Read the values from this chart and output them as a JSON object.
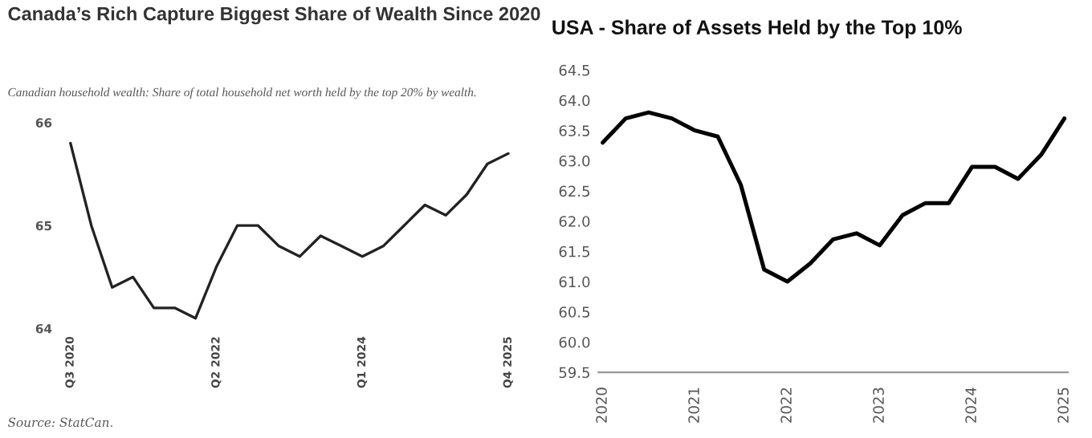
{
  "chart_data": [
    {
      "type": "line",
      "title": "Canada’s Rich Capture Biggest Share of Wealth Since 2020",
      "subtitle": "Canadian household wealth: Share of total household net worth held by the top 20% by wealth.",
      "categories": [
        "Q3 2020",
        null,
        null,
        null,
        null,
        null,
        null,
        "Q2 2022",
        null,
        null,
        null,
        null,
        null,
        null,
        "Q1 2024",
        null,
        null,
        null,
        null,
        null,
        null,
        "Q4 2025"
      ],
      "series": [
        {
          "color": "#222222",
          "values": [
            65.8,
            65.0,
            64.4,
            64.5,
            64.2,
            64.2,
            64.1,
            64.6,
            65.0,
            65.0,
            64.8,
            64.7,
            64.9,
            64.8,
            64.7,
            64.8,
            65.0,
            65.2,
            65.1,
            65.3,
            65.6,
            65.7
          ]
        }
      ],
      "ylim": [
        64,
        66
      ],
      "yticks": [
        64,
        65,
        66
      ],
      "grid": false,
      "legend": false,
      "marker": "none",
      "line_style": "solid",
      "annotations": [
        "Source: StatCan."
      ]
    },
    {
      "type": "line",
      "title": "USA - Share of Assets Held by the Top 10%",
      "x": [
        "2020-01-01",
        "2020-04-01",
        "2020-07-01",
        "2020-10-01",
        "2021-01-01",
        "2021-04-01",
        "2021-07-01",
        "2021-10-01",
        "2022-01-01",
        "2022-04-01",
        "2022-07-01",
        "2022-10-01",
        "2023-01-01",
        "2023-04-01",
        "2023-07-01",
        "2023-10-01",
        "2024-01-01",
        "2024-04-01",
        "2024-07-01",
        "2024-10-01",
        "2025-01-01"
      ],
      "series": [
        {
          "color": "#000000",
          "values": [
            63.3,
            63.7,
            63.8,
            63.7,
            63.5,
            63.4,
            62.6,
            61.2,
            61.0,
            61.3,
            61.7,
            61.8,
            61.6,
            62.1,
            62.3,
            62.3,
            62.9,
            62.9,
            62.7,
            63.1,
            63.7
          ]
        }
      ],
      "xlim": [
        "2019-12-15",
        "2025-01-15"
      ],
      "xticks": [
        "2020",
        "2021",
        "2022",
        "2023",
        "2024",
        "2025"
      ],
      "ylim": [
        59.5,
        64.5
      ],
      "yticks": [
        {
          "value": 59.5,
          "label": "59.5"
        },
        {
          "value": 60,
          "label": "60.0"
        },
        {
          "value": 60.5,
          "label": "60.5"
        },
        {
          "value": 61,
          "label": "61.0"
        },
        {
          "value": 61.5,
          "label": "61.5"
        },
        {
          "value": 62,
          "label": "62.0"
        },
        {
          "value": 62.5,
          "label": "62.5"
        },
        {
          "value": 63,
          "label": "63.0"
        },
        {
          "value": 63.5,
          "label": "63.5"
        },
        {
          "value": 64,
          "label": "64.0"
        },
        {
          "value": 64.5,
          "label": "64.5"
        }
      ],
      "grid": false,
      "legend": false,
      "marker": "none",
      "line_style": "solid"
    }
  ]
}
